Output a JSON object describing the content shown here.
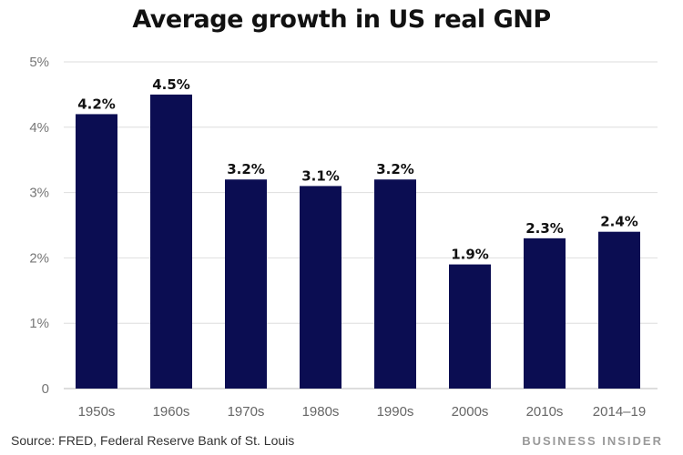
{
  "chart_data": {
    "type": "bar",
    "title": "Average growth in US real GNP",
    "categories": [
      "1950s",
      "1960s",
      "1970s",
      "1980s",
      "1990s",
      "2000s",
      "2010s",
      "2014–19"
    ],
    "values": [
      4.2,
      4.5,
      3.2,
      3.1,
      3.2,
      1.9,
      2.3,
      2.4
    ],
    "data_labels": [
      "4.2%",
      "4.5%",
      "3.2%",
      "3.1%",
      "3.2%",
      "1.9%",
      "2.3%",
      "2.4%"
    ],
    "y_ticks": [
      {
        "value": 0,
        "label": "0"
      },
      {
        "value": 1,
        "label": "1%"
      },
      {
        "value": 2,
        "label": "2%"
      },
      {
        "value": 3,
        "label": "3%"
      },
      {
        "value": 4,
        "label": "4%"
      },
      {
        "value": 5,
        "label": "5%"
      }
    ],
    "ylim": [
      0,
      5
    ],
    "grid": true,
    "colors": {
      "bar": "#0b0d52",
      "grid": "#dedede",
      "tick": "#777777",
      "label": "#111111"
    }
  },
  "footer": {
    "source": "Source: FRED, Federal Reserve Bank of St. Louis",
    "brand": "BUSINESS INSIDER"
  }
}
